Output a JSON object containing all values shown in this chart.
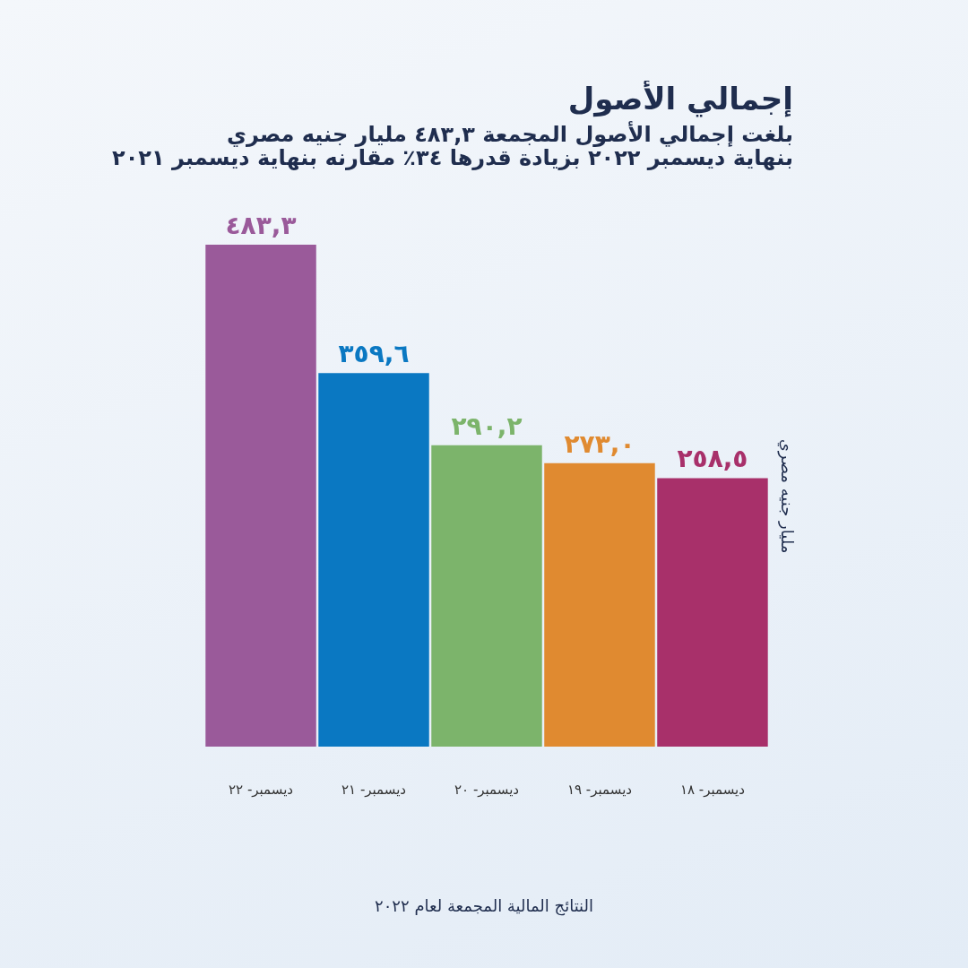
{
  "chart_data": {
    "type": "bar",
    "title": "إجمالي الأصول",
    "subtitle": "بلغت إجمالي الأصول المجمعة ٤٨٣,٣ مليار جنيه مصري\nبنهاية ديسمبر ٢٠٢٢ بزيادة قدرها ٣٤٪ مقارنه بنهاية ديسمبر ٢٠٢١",
    "ylabel": "مليار جنيه مصري",
    "categories": [
      "ديسمبر- ٢٢",
      "ديسمبر- ٢١",
      "ديسمبر- ٢٠",
      "ديسمبر- ١٩",
      "ديسمبر- ١٨"
    ],
    "values": [
      483.3,
      359.6,
      290.2,
      273.0,
      258.5
    ],
    "value_labels": [
      "٤٨٣,٣",
      "٣٥٩,٦",
      "٢٩٠,٢",
      "٢٧٣,٠",
      "٢٥٨,٥"
    ],
    "colors": [
      "#9a5a9a",
      "#0a78c2",
      "#7cb46b",
      "#e08a30",
      "#a8306a"
    ],
    "grid": false,
    "legend": false,
    "annotations": [
      "النتائج المالية المجمعة لعام ٢٠٢٢"
    ]
  }
}
